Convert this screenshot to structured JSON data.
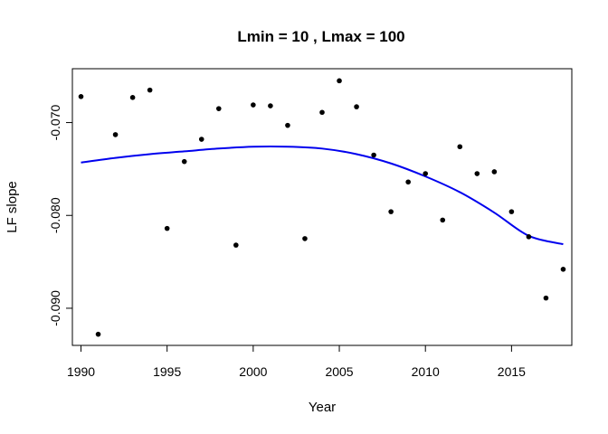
{
  "chart_data": {
    "type": "scatter",
    "title": "Lmin = 10 , Lmax = 100",
    "xlabel": "Year",
    "ylabel": "LF slope",
    "xlim": [
      1989.5,
      2018.5
    ],
    "ylim": [
      -0.094,
      -0.0642
    ],
    "x_ticks": [
      1990,
      1995,
      2000,
      2005,
      2010,
      2015
    ],
    "x_tick_labels": [
      "1990",
      "1995",
      "2000",
      "2005",
      "2010",
      "2015"
    ],
    "y_ticks": [
      -0.09,
      -0.08,
      -0.07
    ],
    "y_tick_labels": [
      "-0.090",
      "-0.080",
      "-0.070"
    ],
    "point_color": "#000000",
    "series": [
      {
        "name": "observed",
        "type": "scatter",
        "x": [
          1990,
          1991,
          1992,
          1993,
          1994,
          1995,
          1996,
          1997,
          1998,
          1999,
          2000,
          2001,
          2002,
          2003,
          2004,
          2005,
          2006,
          2007,
          2008,
          2009,
          2010,
          2011,
          2012,
          2013,
          2014,
          2015,
          2016,
          2017,
          2018
        ],
        "y": [
          -0.0672,
          -0.0928,
          -0.0713,
          -0.0673,
          -0.0665,
          -0.0814,
          -0.0742,
          -0.0718,
          -0.0685,
          -0.0832,
          -0.0681,
          -0.0682,
          -0.0703,
          -0.0825,
          -0.0689,
          -0.0655,
          -0.0683,
          -0.0735,
          -0.0796,
          -0.0764,
          -0.0755,
          -0.0805,
          -0.0726,
          -0.0755,
          -0.0753,
          -0.0796,
          -0.0823,
          -0.0889,
          -0.0858
        ]
      },
      {
        "name": "fitted",
        "type": "line",
        "color": "#0000ee",
        "x": [
          1990,
          1992,
          1994,
          1996,
          1998,
          2000,
          2002,
          2004,
          2006,
          2008,
          2010,
          2012,
          2014,
          2016,
          2018
        ],
        "y": [
          -0.0743,
          -0.0738,
          -0.0734,
          -0.0731,
          -0.0728,
          -0.0726,
          -0.0726,
          -0.0728,
          -0.0734,
          -0.0744,
          -0.0758,
          -0.0775,
          -0.0797,
          -0.0822,
          -0.0831
        ]
      }
    ]
  }
}
